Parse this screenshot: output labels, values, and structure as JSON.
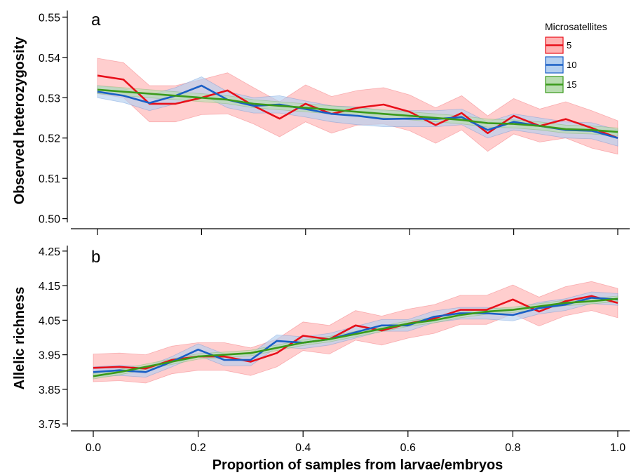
{
  "chart_data": [
    {
      "type": "line",
      "panel_label": "a",
      "ylabel": "Observed heterozygosity",
      "xlabel": "",
      "xlim": [
        0,
        1
      ],
      "ylim": [
        0.4975,
        0.5525
      ],
      "yticks": [
        0.5,
        0.51,
        0.52,
        0.53,
        0.54,
        0.55
      ],
      "ytick_labels": [
        "0.50",
        "0.51",
        "0.52",
        "0.53",
        "0.54",
        "0.55"
      ],
      "xticks": [
        0,
        0.2,
        0.4,
        0.6,
        0.8,
        1.0
      ],
      "xtick_labels": [],
      "legend": {
        "title": "Microsatellites",
        "placement": "top-right"
      },
      "x": [
        0,
        0.05,
        0.1,
        0.15,
        0.2,
        0.25,
        0.3,
        0.35,
        0.4,
        0.45,
        0.5,
        0.55,
        0.6,
        0.65,
        0.7,
        0.75,
        0.8,
        0.85,
        0.9,
        0.95,
        1.0
      ],
      "series": [
        {
          "name": "5",
          "color": "#e8101a",
          "band_color": "#ffb3b3",
          "values": [
            0.5355,
            0.5345,
            0.5285,
            0.5285,
            0.53,
            0.5318,
            0.528,
            0.5248,
            0.5285,
            0.526,
            0.5275,
            0.5283,
            0.5265,
            0.5232,
            0.5262,
            0.5212,
            0.5255,
            0.523,
            0.5247,
            0.5225,
            0.52
          ],
          "lower": [
            0.531,
            0.53,
            0.524,
            0.524,
            0.5258,
            0.526,
            0.5235,
            0.5203,
            0.524,
            0.5212,
            0.5232,
            0.5235,
            0.5218,
            0.5187,
            0.522,
            0.5167,
            0.521,
            0.519,
            0.52,
            0.5175,
            0.516
          ],
          "upper": [
            0.5398,
            0.5387,
            0.533,
            0.533,
            0.5345,
            0.5362,
            0.5325,
            0.529,
            0.5332,
            0.5303,
            0.5318,
            0.5325,
            0.5307,
            0.5275,
            0.5305,
            0.5255,
            0.5298,
            0.5272,
            0.529,
            0.5268,
            0.5243
          ]
        },
        {
          "name": "10",
          "color": "#1a5fc6",
          "band_color": "#b3cff0",
          "values": [
            0.5315,
            0.5305,
            0.5287,
            0.5305,
            0.533,
            0.5295,
            0.528,
            0.5283,
            0.5272,
            0.526,
            0.5255,
            0.5247,
            0.5248,
            0.5247,
            0.5252,
            0.522,
            0.524,
            0.523,
            0.522,
            0.5218,
            0.52
          ],
          "lower": [
            0.53,
            0.5288,
            0.5268,
            0.5285,
            0.5308,
            0.5275,
            0.5262,
            0.5262,
            0.5252,
            0.524,
            0.5233,
            0.5228,
            0.5228,
            0.5228,
            0.5233,
            0.52,
            0.522,
            0.521,
            0.52,
            0.5198,
            0.518
          ],
          "upper": [
            0.533,
            0.5322,
            0.5307,
            0.5325,
            0.5352,
            0.5315,
            0.53,
            0.5305,
            0.5292,
            0.528,
            0.5277,
            0.5268,
            0.5268,
            0.5268,
            0.5272,
            0.524,
            0.526,
            0.525,
            0.524,
            0.5238,
            0.522
          ]
        },
        {
          "name": "15",
          "color": "#3a9a1a",
          "band_color": "#b8ddb0",
          "values": [
            0.532,
            0.5315,
            0.531,
            0.5305,
            0.53,
            0.5295,
            0.5285,
            0.528,
            0.5275,
            0.527,
            0.5265,
            0.526,
            0.5255,
            0.525,
            0.5245,
            0.5237,
            0.5235,
            0.523,
            0.5222,
            0.522,
            0.5215
          ],
          "lower": [
            0.531,
            0.5305,
            0.53,
            0.5295,
            0.529,
            0.5285,
            0.5275,
            0.527,
            0.5265,
            0.526,
            0.5255,
            0.525,
            0.5245,
            0.524,
            0.5235,
            0.5227,
            0.5225,
            0.522,
            0.5212,
            0.521,
            0.5205
          ],
          "upper": [
            0.533,
            0.5325,
            0.532,
            0.5315,
            0.531,
            0.5305,
            0.5295,
            0.529,
            0.5285,
            0.528,
            0.5275,
            0.527,
            0.5265,
            0.526,
            0.5255,
            0.5247,
            0.5245,
            0.524,
            0.5232,
            0.523,
            0.5225
          ]
        }
      ]
    },
    {
      "type": "line",
      "panel_label": "b",
      "ylabel": "Allelic richness",
      "xlabel": "Proportion of samples from larvae/embryos",
      "xlim": [
        0,
        1
      ],
      "ylim": [
        3.73,
        4.27
      ],
      "yticks": [
        3.75,
        3.85,
        3.95,
        4.05,
        4.15,
        4.25
      ],
      "ytick_labels": [
        "3.75",
        "3.85",
        "3.95",
        "4.05",
        "4.15",
        "4.25"
      ],
      "xticks": [
        0,
        0.2,
        0.4,
        0.6,
        0.8,
        1.0
      ],
      "xtick_labels": [
        "0.0",
        "0.2",
        "0.4",
        "0.6",
        "0.8",
        "1.0"
      ],
      "x": [
        0,
        0.05,
        0.1,
        0.15,
        0.2,
        0.25,
        0.3,
        0.35,
        0.4,
        0.45,
        0.5,
        0.55,
        0.6,
        0.65,
        0.7,
        0.75,
        0.8,
        0.85,
        0.9,
        0.95,
        1.0
      ],
      "series": [
        {
          "name": "5",
          "color": "#e8101a",
          "band_color": "#ffb3b3",
          "values": [
            3.912,
            3.915,
            3.91,
            3.935,
            3.945,
            3.945,
            3.93,
            3.955,
            4.005,
            3.995,
            4.035,
            4.02,
            4.04,
            4.055,
            4.08,
            4.08,
            4.11,
            4.075,
            4.105,
            4.12,
            4.1
          ],
          "lower": [
            3.872,
            3.875,
            3.868,
            3.895,
            3.905,
            3.905,
            3.89,
            3.915,
            3.962,
            3.952,
            3.992,
            3.978,
            3.998,
            4.012,
            4.038,
            4.038,
            4.068,
            4.033,
            4.063,
            4.078,
            4.057
          ],
          "upper": [
            3.952,
            3.955,
            3.95,
            3.975,
            3.985,
            3.985,
            3.97,
            3.995,
            4.045,
            4.035,
            4.078,
            4.062,
            4.082,
            4.095,
            4.122,
            4.122,
            4.152,
            4.117,
            4.147,
            4.162,
            4.142
          ]
        },
        {
          "name": "10",
          "color": "#1a5fc6",
          "band_color": "#b3cff0",
          "values": [
            3.9,
            3.905,
            3.9,
            3.93,
            3.965,
            3.935,
            3.935,
            3.99,
            3.985,
            3.995,
            4.015,
            4.035,
            4.035,
            4.06,
            4.07,
            4.07,
            4.065,
            4.085,
            4.095,
            4.115,
            4.11
          ],
          "lower": [
            3.885,
            3.89,
            3.885,
            3.915,
            3.948,
            3.918,
            3.918,
            3.972,
            3.968,
            3.978,
            3.998,
            4.018,
            4.018,
            4.043,
            4.053,
            4.053,
            4.048,
            4.068,
            4.078,
            4.098,
            4.093
          ],
          "upper": [
            3.915,
            3.92,
            3.915,
            3.945,
            3.982,
            3.952,
            3.952,
            4.008,
            4.002,
            4.012,
            4.032,
            4.052,
            4.052,
            4.077,
            4.087,
            4.087,
            4.082,
            4.102,
            4.112,
            4.132,
            4.127
          ]
        },
        {
          "name": "15",
          "color": "#3a9a1a",
          "band_color": "#b8ddb0",
          "values": [
            3.888,
            3.9,
            3.915,
            3.93,
            3.945,
            3.95,
            3.955,
            3.97,
            3.985,
            3.995,
            4.01,
            4.025,
            4.04,
            4.05,
            4.065,
            4.075,
            4.08,
            4.09,
            4.1,
            4.105,
            4.112
          ],
          "lower": [
            3.88,
            3.892,
            3.907,
            3.922,
            3.937,
            3.942,
            3.947,
            3.962,
            3.977,
            3.987,
            4.002,
            4.017,
            4.032,
            4.042,
            4.057,
            4.067,
            4.072,
            4.082,
            4.092,
            4.097,
            4.104
          ],
          "upper": [
            3.896,
            3.908,
            3.923,
            3.938,
            3.953,
            3.958,
            3.963,
            3.978,
            3.993,
            4.003,
            4.018,
            4.033,
            4.048,
            4.058,
            4.073,
            4.083,
            4.088,
            4.098,
            4.108,
            4.113,
            4.12
          ]
        }
      ]
    }
  ]
}
